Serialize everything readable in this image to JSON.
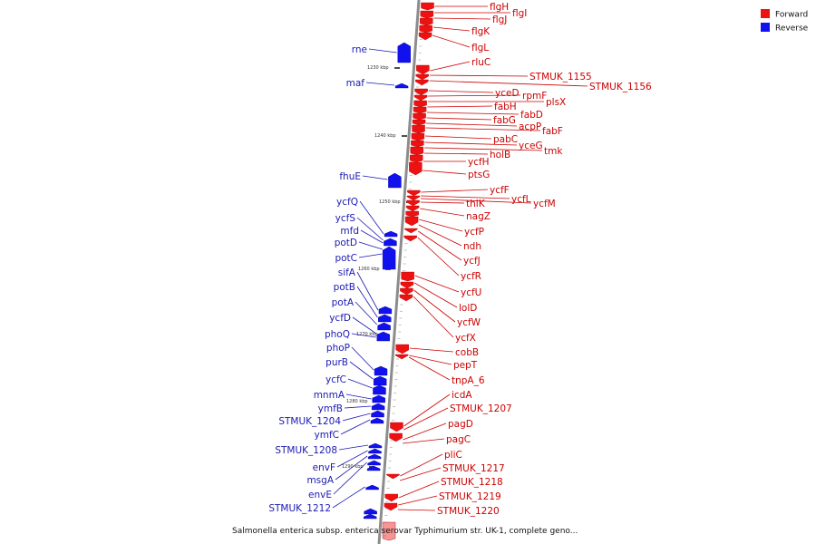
{
  "caption": "Salmonella enterica subsp. enterica serovar Typhimurium str. UK-1, complete geno...",
  "legend": [
    {
      "label": "Forward",
      "color": "#ee1111"
    },
    {
      "label": "Reverse",
      "color": "#1111ee"
    }
  ],
  "colors": {
    "forward_feature": "#ee1111",
    "forward_label": "#cc0000",
    "reverse_feature": "#1111ee",
    "reverse_label": "#1a1ab4",
    "backbone": "#8c8c8c",
    "tick": "#222222"
  },
  "kbp_marks": [
    "1230 kbp",
    "1240 kbp",
    "1250 kbp",
    "1260 kbp",
    "1270 kbp",
    "1280 kbp",
    "1290 kbp"
  ],
  "forward_genes": [
    "flgH",
    "flgI",
    "flgJ",
    "flgK",
    "flgL",
    "rluC",
    "STMUK_1155",
    "STMUK_1156",
    "yceD",
    "rpmF",
    "plsX",
    "fabH",
    "fabD",
    "fabG",
    "acpP",
    "fabF",
    "pabC",
    "yceG",
    "tmk",
    "holB",
    "ycfH",
    "ptsG",
    "ycfF",
    "ycfL",
    "ycfM",
    "thiK",
    "nagZ",
    "ycfP",
    "ndh",
    "ycfJ",
    "ycfR",
    "ycfU",
    "lolD",
    "ycfW",
    "ycfX",
    "cobB",
    "pepT",
    "tnpA_6",
    "icdA",
    "STMUK_1207",
    "pagD",
    "pagC",
    "pliC",
    "STMUK_1217",
    "STMUK_1218",
    "STMUK_1219",
    "STMUK_1220"
  ],
  "reverse_genes": [
    "rne",
    "maf",
    "fhuE",
    "ycfQ",
    "ycfS",
    "mfd",
    "potD",
    "potC",
    "sifA",
    "potB",
    "potA",
    "ycfD",
    "phoQ",
    "phoP",
    "purB",
    "ycfC",
    "mnmA",
    "ymfB",
    "STMUK_1204",
    "ymfC",
    "STMUK_1208",
    "envF",
    "msgA",
    "envE",
    "STMUK_1212"
  ]
}
